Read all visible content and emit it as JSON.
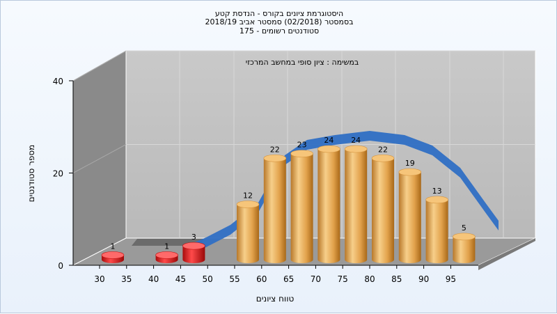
{
  "titles": {
    "line1": "היסטוגרמת ציונים בקורס - הנדסת קטע",
    "line2": "בסמסטר  (02/2018)  סמסטר אביב 2018/19",
    "line3": "סטודנטים רשומים - 175"
  },
  "chart_data": {
    "type": "bar",
    "annotation": "במשימה : ציון סופי במחשב המרכזי",
    "xlabel": "טווח ציונים",
    "ylabel": "מספר סטודנטים",
    "ylim": [
      0,
      40
    ],
    "yticks": [
      "0",
      "20",
      "40"
    ],
    "xticks": [
      "30",
      "35",
      "40",
      "45",
      "50",
      "55",
      "60",
      "65",
      "70",
      "75",
      "80",
      "85",
      "90",
      "95"
    ],
    "categories": [
      "30",
      "40",
      "45",
      "55",
      "60",
      "65",
      "70",
      "75",
      "80",
      "85",
      "90",
      "95"
    ],
    "values": [
      1,
      1,
      3,
      12,
      22,
      23,
      24,
      24,
      22,
      19,
      13,
      5
    ],
    "bar_colors": {
      "low": "#d81c1c",
      "pass": "#e8a84c"
    },
    "curve_color": "#2f6fc4",
    "grid": true
  }
}
